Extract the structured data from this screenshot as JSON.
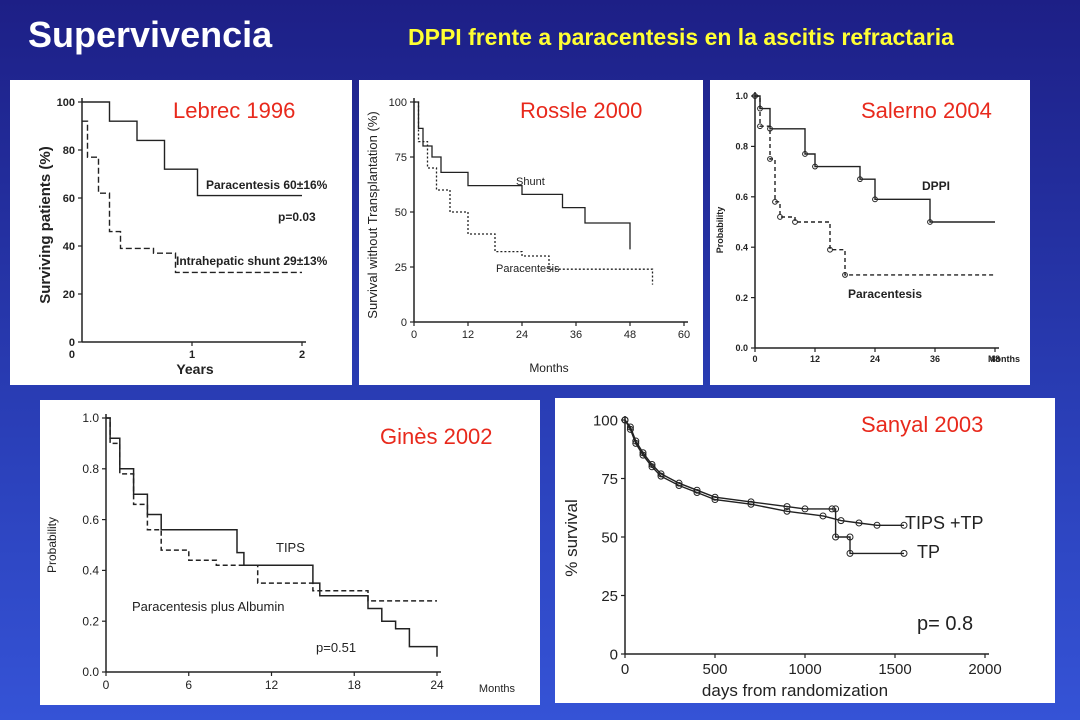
{
  "slide": {
    "title": "Supervivencia",
    "subtitle": "DPPI frente a paracentesis en la ascitis refractaria"
  },
  "colors": {
    "label_red": "#e8291c",
    "subtitle_yellow": "#ffff33",
    "curve": "#222222"
  },
  "chart_data": [
    {
      "id": "lebrec",
      "label": "Lebrec 1996",
      "type": "line",
      "xlabel": "Years",
      "ylabel": "Surviving patients (%)",
      "xlim": [
        0,
        2
      ],
      "ylim": [
        0,
        100
      ],
      "xticks": [
        1,
        2
      ],
      "yticks": [
        0,
        20,
        40,
        60,
        80,
        100
      ],
      "annotations": [
        "p=0.03"
      ],
      "series": [
        {
          "name": "Paracentesis 60±16%",
          "style": "solid",
          "x": [
            0,
            0.25,
            0.25,
            0.5,
            0.5,
            0.75,
            0.75,
            1.05,
            1.05,
            2
          ],
          "y": [
            100,
            100,
            92,
            92,
            84,
            84,
            72,
            72,
            61,
            61
          ]
        },
        {
          "name": "Intrahepatic shunt 29±13%",
          "style": "dashed",
          "x": [
            0,
            0.05,
            0.05,
            0.15,
            0.15,
            0.25,
            0.25,
            0.35,
            0.35,
            0.65,
            0.65,
            0.85,
            0.85,
            2
          ],
          "y": [
            92,
            92,
            77,
            77,
            62,
            62,
            46,
            46,
            39,
            39,
            37,
            37,
            29,
            29
          ]
        }
      ]
    },
    {
      "id": "rossle",
      "label": "Rossle 2000",
      "type": "line",
      "xlabel": "Months",
      "ylabel": "Survival without Transplantation (%)",
      "xlim": [
        0,
        60
      ],
      "ylim": [
        0,
        100
      ],
      "xticks": [
        0,
        12,
        24,
        36,
        48,
        60
      ],
      "yticks": [
        0,
        25,
        50,
        75,
        100
      ],
      "series": [
        {
          "name": "Shunt",
          "style": "solid",
          "x": [
            0,
            1,
            1,
            2,
            2,
            4,
            4,
            6,
            6,
            12,
            12,
            24,
            24,
            33,
            33,
            38,
            38,
            48,
            48
          ],
          "y": [
            100,
            100,
            88,
            88,
            80,
            80,
            75,
            75,
            68,
            68,
            62,
            62,
            58,
            58,
            52,
            52,
            45,
            45,
            33
          ]
        },
        {
          "name": "Paracentesis",
          "style": "dashed",
          "x": [
            0,
            1,
            1,
            3,
            3,
            5,
            5,
            8,
            8,
            12,
            12,
            18,
            18,
            24,
            24,
            30,
            30,
            53,
            53
          ],
          "y": [
            100,
            100,
            82,
            82,
            70,
            70,
            60,
            60,
            50,
            50,
            40,
            40,
            32,
            32,
            30,
            30,
            24,
            24,
            17
          ]
        }
      ]
    },
    {
      "id": "salerno",
      "label": "Salerno 2004",
      "type": "line",
      "xlabel": "Months",
      "ylabel": "Probability",
      "xlim": [
        0,
        48
      ],
      "ylim": [
        0,
        1.0
      ],
      "xticks": [
        0,
        12,
        24,
        36,
        48
      ],
      "yticks": [
        0.0,
        0.2,
        0.4,
        0.6,
        0.8,
        1.0
      ],
      "series": [
        {
          "name": "DPPI",
          "style": "solid",
          "x": [
            0,
            1,
            1,
            3,
            3,
            10,
            10,
            12,
            12,
            21,
            21,
            24,
            24,
            35,
            35,
            48
          ],
          "y": [
            1.0,
            1.0,
            0.95,
            0.95,
            0.87,
            0.87,
            0.77,
            0.77,
            0.72,
            0.72,
            0.67,
            0.67,
            0.59,
            0.59,
            0.5,
            0.5
          ]
        },
        {
          "name": "Paracentesis",
          "style": "dashed",
          "x": [
            0,
            1,
            1,
            3,
            3,
            4,
            4,
            5,
            5,
            8,
            8,
            15,
            15,
            18,
            18,
            48
          ],
          "y": [
            1.0,
            1.0,
            0.88,
            0.88,
            0.75,
            0.75,
            0.58,
            0.58,
            0.52,
            0.52,
            0.5,
            0.5,
            0.39,
            0.39,
            0.29,
            0.29
          ]
        }
      ]
    },
    {
      "id": "gines",
      "label": "Ginès 2002",
      "type": "line",
      "xlabel": "Months",
      "ylabel": "Probability",
      "xlim": [
        0,
        24
      ],
      "ylim": [
        0,
        1.0
      ],
      "xticks": [
        0,
        6,
        12,
        18,
        24
      ],
      "yticks": [
        0.0,
        0.2,
        0.4,
        0.6,
        0.8,
        1.0
      ],
      "annotations": [
        "p=0.51"
      ],
      "series": [
        {
          "name": "TIPS",
          "style": "solid",
          "x": [
            0,
            0.3,
            0.3,
            1,
            1,
            2,
            2,
            3,
            3,
            4,
            4,
            9.5,
            9.5,
            10,
            10,
            15,
            15,
            15.5,
            15.5,
            19,
            19,
            20,
            20,
            21,
            21,
            22,
            22,
            24,
            24
          ],
          "y": [
            1.0,
            1.0,
            0.92,
            0.92,
            0.8,
            0.8,
            0.7,
            0.7,
            0.62,
            0.62,
            0.56,
            0.56,
            0.47,
            0.47,
            0.42,
            0.42,
            0.35,
            0.35,
            0.3,
            0.3,
            0.25,
            0.25,
            0.2,
            0.2,
            0.17,
            0.17,
            0.1,
            0.1,
            0.06
          ]
        },
        {
          "name": "Paracentesis plus Albumin",
          "style": "dashed",
          "x": [
            0,
            0.3,
            0.3,
            1,
            1,
            2,
            2,
            3,
            3,
            4,
            4,
            6,
            6,
            8,
            8,
            11,
            11,
            15,
            15,
            19,
            19,
            24
          ],
          "y": [
            1.0,
            1.0,
            0.9,
            0.9,
            0.78,
            0.78,
            0.66,
            0.66,
            0.56,
            0.56,
            0.48,
            0.48,
            0.44,
            0.44,
            0.42,
            0.42,
            0.35,
            0.35,
            0.32,
            0.32,
            0.28,
            0.28
          ]
        }
      ]
    },
    {
      "id": "sanyal",
      "label": "Sanyal 2003",
      "type": "line",
      "xlabel": "days from randomization",
      "ylabel": "% survival",
      "xlim": [
        0,
        2000
      ],
      "ylim": [
        0,
        100
      ],
      "xticks": [
        0,
        500,
        1000,
        1500,
        2000
      ],
      "yticks": [
        0,
        25,
        50,
        75,
        100
      ],
      "annotations": [
        "p= 0.8"
      ],
      "series": [
        {
          "name": "TIPS +TP",
          "style": "solid",
          "x": [
            0,
            30,
            60,
            100,
            150,
            200,
            300,
            400,
            500,
            700,
            900,
            1100,
            1200,
            1300,
            1400,
            1550
          ],
          "y": [
            100,
            96,
            90,
            85,
            80,
            76,
            72,
            69,
            66,
            64,
            61,
            59,
            57,
            56,
            55,
            55
          ]
        },
        {
          "name": "TP",
          "style": "solid",
          "x": [
            0,
            30,
            60,
            100,
            150,
            200,
            300,
            400,
            500,
            700,
            900,
            1000,
            1150,
            1170,
            1170,
            1250,
            1250,
            1550
          ],
          "y": [
            100,
            97,
            91,
            86,
            81,
            77,
            73,
            70,
            67,
            65,
            63,
            62,
            62,
            62,
            50,
            50,
            43,
            43
          ]
        }
      ]
    }
  ],
  "panels_text": {
    "lebrec": {
      "para_label": "Paracentesis 60±16%",
      "shunt_label": "Intrahepatic shunt 29±13%",
      "p": "p=0.03"
    },
    "rossle": {
      "shunt_label": "Shunt",
      "para_label": "Paracentesis"
    },
    "salerno": {
      "dppi_label": "DPPI",
      "para_label": "Paracentesis"
    },
    "gines": {
      "tips_label": "TIPS",
      "para_label": "Paracentesis plus Albumin",
      "p": "p=0.51"
    },
    "sanyal": {
      "tips_label": "TIPS +TP",
      "tp_label": "TP",
      "p": "p= 0.8"
    }
  }
}
